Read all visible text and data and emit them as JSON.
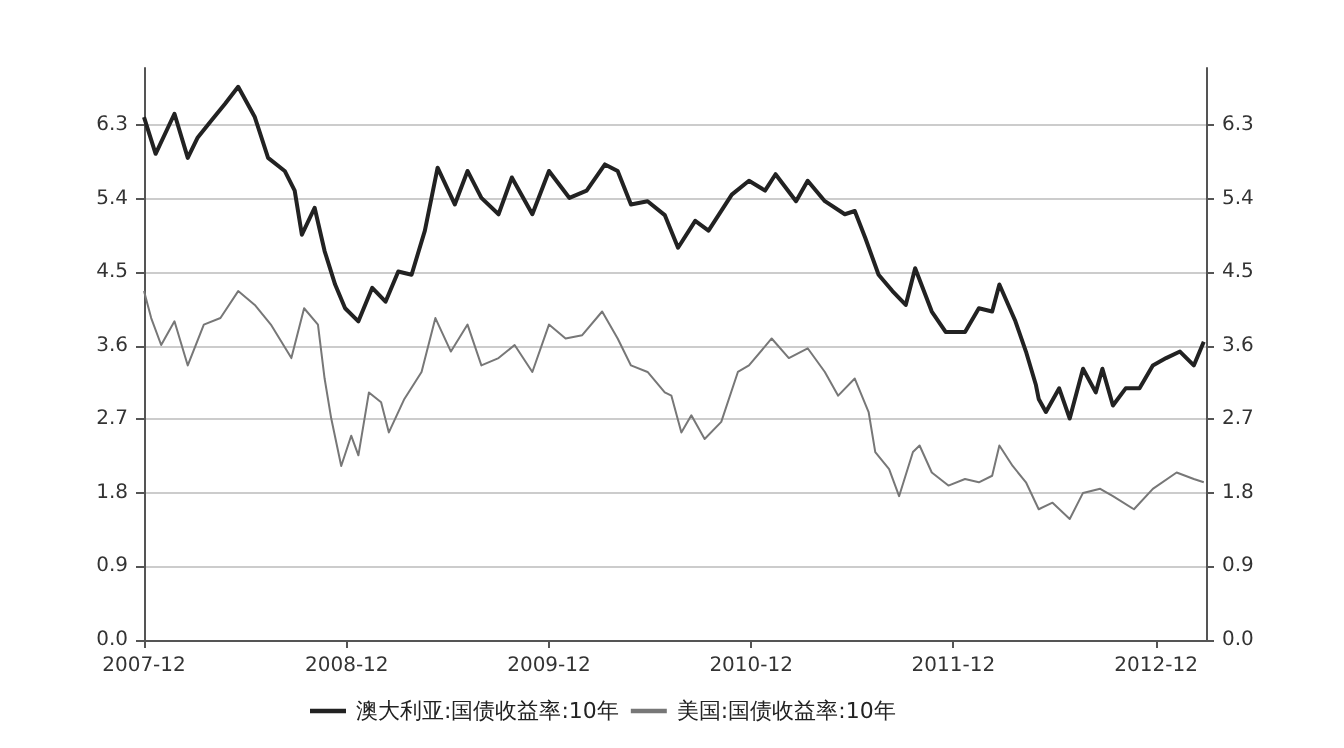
{
  "chart_data": {
    "type": "line",
    "xlim": [
      "2007-12-01",
      "2013-03-01"
    ],
    "xticks": [
      "2007-12",
      "2008-12",
      "2009-12",
      "2010-12",
      "2011-12",
      "2012-12"
    ],
    "ylim": [
      0,
      7.0
    ],
    "yticks": [
      {
        "value": 0,
        "label": "0.0"
      },
      0.9,
      1.8,
      2.7,
      3.6,
      4.5,
      5.4,
      6.3
    ],
    "y2lim": [
      0,
      7.0
    ],
    "y2ticks": [
      {
        "value": 0,
        "label": "0.0"
      },
      0.9,
      1.8,
      2.7,
      3.6,
      4.5,
      5.4,
      6.3
    ],
    "grid": "y",
    "legend": "bottom",
    "marker": "none",
    "line_style": "solid",
    "series": [
      {
        "name": "澳大利亚:国债收益率:10年",
        "color": "#222222",
        "x": [
          "2007-12-01",
          "2007-12-22",
          "2008-01-25",
          "2008-02-18",
          "2008-03-07",
          "2008-04-01",
          "2008-04-25",
          "2008-05-19",
          "2008-06-18",
          "2008-07-12",
          "2008-08-11",
          "2008-08-29",
          "2008-09-11",
          "2008-10-04",
          "2008-10-22",
          "2008-11-10",
          "2008-11-28",
          "2008-12-22",
          "2009-01-16",
          "2009-02-09",
          "2009-03-04",
          "2009-03-28",
          "2009-04-21",
          "2009-05-14",
          "2009-06-14",
          "2009-07-07",
          "2009-08-01",
          "2009-09-01",
          "2009-09-25",
          "2009-11-01",
          "2009-12-01",
          "2010-01-07",
          "2010-02-07",
          "2010-03-12",
          "2010-04-04",
          "2010-04-28",
          "2010-05-28",
          "2010-06-28",
          "2010-07-22",
          "2010-08-22",
          "2010-09-15",
          "2010-10-27",
          "2010-11-27",
          "2010-12-26",
          "2011-01-14",
          "2011-02-20",
          "2011-03-13",
          "2011-04-13",
          "2011-05-19",
          "2011-06-06",
          "2011-06-25",
          "2011-07-19",
          "2011-08-13",
          "2011-09-06",
          "2011-09-23",
          "2011-10-23",
          "2011-11-17",
          "2011-12-22",
          "2012-01-16",
          "2012-02-09",
          "2012-02-22",
          "2012-03-22",
          "2012-04-10",
          "2012-04-28",
          "2012-05-03",
          "2012-05-16",
          "2012-06-09",
          "2012-06-28",
          "2012-07-22",
          "2012-08-14",
          "2012-08-26",
          "2012-09-14",
          "2012-10-07",
          "2012-11-01",
          "2012-11-25",
          "2012-12-19",
          "2013-01-13",
          "2013-02-07",
          "2013-02-25"
        ],
        "values": [
          6.4,
          5.95,
          6.44,
          5.9,
          6.15,
          6.36,
          6.56,
          6.77,
          6.4,
          5.9,
          5.74,
          5.5,
          4.96,
          5.29,
          4.76,
          4.35,
          4.06,
          3.9,
          4.31,
          4.14,
          4.51,
          4.47,
          5.01,
          5.78,
          5.33,
          5.74,
          5.41,
          5.21,
          5.66,
          5.21,
          5.74,
          5.41,
          5.5,
          5.82,
          5.74,
          5.33,
          5.37,
          5.2,
          4.8,
          5.13,
          5.01,
          5.45,
          5.62,
          5.5,
          5.7,
          5.37,
          5.62,
          5.37,
          5.21,
          5.25,
          4.92,
          4.47,
          4.27,
          4.1,
          4.55,
          4.02,
          3.77,
          3.77,
          4.06,
          4.02,
          4.35,
          3.9,
          3.53,
          3.12,
          2.95,
          2.79,
          3.08,
          2.71,
          3.32,
          3.03,
          3.32,
          2.87,
          3.08,
          3.08,
          3.36,
          3.45,
          3.53,
          3.36,
          3.65
        ]
      },
      {
        "name": "美国:国债收益率:10年",
        "color": "#777777",
        "x": [
          "2007-12-01",
          "2007-12-14",
          "2008-01-01",
          "2008-01-25",
          "2008-02-18",
          "2008-03-18",
          "2008-04-17",
          "2008-05-19",
          "2008-06-18",
          "2008-07-17",
          "2008-08-23",
          "2008-09-15",
          "2008-10-10",
          "2008-10-22",
          "2008-11-03",
          "2008-11-21",
          "2008-12-09",
          "2008-12-22",
          "2009-01-10",
          "2009-02-01",
          "2009-02-15",
          "2009-03-15",
          "2009-04-15",
          "2009-05-10",
          "2009-06-07",
          "2009-07-07",
          "2009-08-01",
          "2009-09-01",
          "2009-09-30",
          "2009-11-01",
          "2009-12-01",
          "2009-12-31",
          "2010-01-30",
          "2010-03-07",
          "2010-04-04",
          "2010-04-28",
          "2010-05-28",
          "2010-06-28",
          "2010-07-10",
          "2010-07-28",
          "2010-08-15",
          "2010-09-08",
          "2010-10-08",
          "2010-11-07",
          "2010-11-27",
          "2011-01-07",
          "2011-02-07",
          "2011-03-13",
          "2011-04-13",
          "2011-05-07",
          "2011-06-06",
          "2011-07-01",
          "2011-07-13",
          "2011-08-07",
          "2011-08-25",
          "2011-09-19",
          "2011-10-01",
          "2011-10-23",
          "2011-11-22",
          "2011-12-22",
          "2012-01-16",
          "2012-02-09",
          "2012-02-22",
          "2012-03-17",
          "2012-04-10",
          "2012-05-03",
          "2012-05-28",
          "2012-06-28",
          "2012-07-22",
          "2012-08-22",
          "2012-09-14",
          "2012-10-22",
          "2012-11-25",
          "2013-01-07",
          "2013-02-07",
          "2013-02-25"
        ],
        "values": [
          4.27,
          3.94,
          3.61,
          3.9,
          3.36,
          3.86,
          3.94,
          4.27,
          4.1,
          3.86,
          3.45,
          4.06,
          3.86,
          3.2,
          2.71,
          2.13,
          2.5,
          2.26,
          3.03,
          2.91,
          2.54,
          2.95,
          3.28,
          3.94,
          3.53,
          3.86,
          3.36,
          3.45,
          3.61,
          3.28,
          3.86,
          3.69,
          3.73,
          4.02,
          3.69,
          3.36,
          3.28,
          3.03,
          2.99,
          2.54,
          2.75,
          2.46,
          2.67,
          3.28,
          3.36,
          3.69,
          3.45,
          3.57,
          3.28,
          2.99,
          3.2,
          2.79,
          2.3,
          2.09,
          1.76,
          2.3,
          2.38,
          2.05,
          1.89,
          1.97,
          1.93,
          2.01,
          2.38,
          2.13,
          1.93,
          1.6,
          1.68,
          1.48,
          1.8,
          1.85,
          1.76,
          1.6,
          1.85,
          2.05,
          1.97,
          1.93
        ]
      }
    ]
  }
}
